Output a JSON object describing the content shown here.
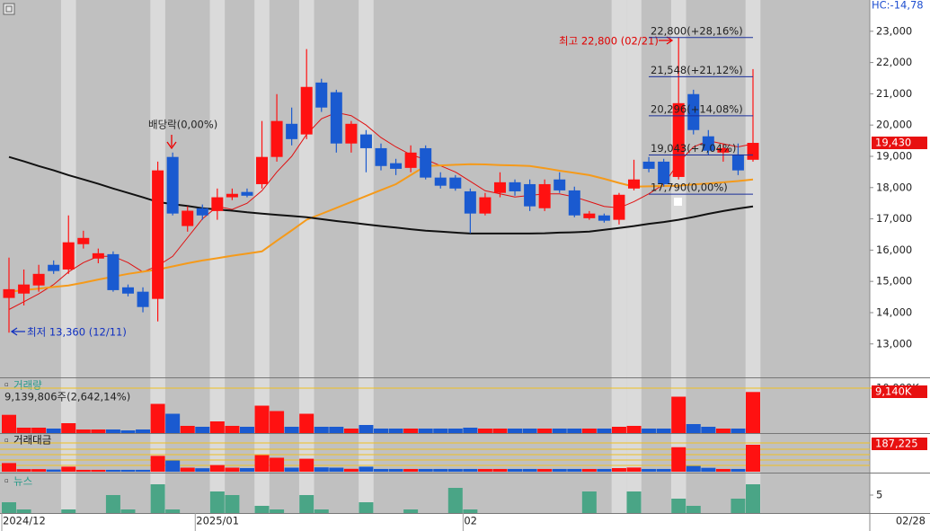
{
  "chart_data": [
    {
      "type": "candlestick",
      "indicator": "HC:-14,78",
      "categories": [
        "2024/12",
        null,
        null,
        null,
        null,
        null,
        null,
        null,
        null,
        null,
        null,
        null,
        null,
        "2025/01",
        null,
        null,
        null,
        null,
        null,
        null,
        null,
        null,
        null,
        null,
        null,
        null,
        null,
        null,
        null,
        null,
        null,
        "02",
        null,
        null,
        null,
        null,
        null,
        null,
        null,
        null,
        null,
        null,
        null,
        null,
        null,
        null,
        null,
        null,
        null,
        null,
        null
      ],
      "x_end_label": "02/28",
      "open": [
        14470,
        14610,
        14870,
        15530,
        15380,
        16190,
        15730,
        15870,
        14810,
        14670,
        14440,
        18980,
        16770,
        17340,
        17250,
        17690,
        17860,
        18110,
        18980,
        20040,
        19700,
        21360,
        21050,
        19410,
        19700,
        19260,
        18780,
        18630,
        19260,
        18320,
        18320,
        17880,
        17170,
        17830,
        18170,
        18110,
        17340,
        18260,
        17910,
        17020,
        17110,
        16970,
        17970,
        18830,
        18830,
        18340,
        20990,
        19640,
        19120,
        19060,
        18890
      ],
      "high": [
        15760,
        15380,
        15530,
        15670,
        17110,
        16620,
        16050,
        15960,
        14900,
        14810,
        18830,
        19120,
        17400,
        17460,
        17970,
        17970,
        17970,
        20130,
        20990,
        20560,
        22430,
        21480,
        21130,
        20130,
        19840,
        19410,
        18920,
        19350,
        19350,
        18490,
        18400,
        17970,
        17830,
        18490,
        18260,
        18260,
        18260,
        18490,
        18030,
        17250,
        17170,
        17830,
        18890,
        18980,
        18920,
        22800,
        21130,
        19840,
        19410,
        19410,
        21790
      ],
      "low": [
        13360,
        14230,
        14670,
        15240,
        15240,
        16050,
        15580,
        14670,
        14520,
        14010,
        13720,
        17110,
        16590,
        16970,
        16970,
        17600,
        17690,
        17970,
        18830,
        19350,
        19550,
        20420,
        19120,
        19120,
        18490,
        18550,
        18400,
        18490,
        18260,
        17970,
        17900,
        16540,
        17110,
        17690,
        17740,
        17250,
        17250,
        17830,
        17050,
        16970,
        16880,
        16820,
        17910,
        18490,
        18030,
        18260,
        19700,
        19030,
        18830,
        18400,
        18830
      ],
      "close": [
        14750,
        14900,
        15240,
        15330,
        16250,
        16390,
        15900,
        14720,
        14610,
        14180,
        18550,
        17170,
        17260,
        17110,
        17690,
        17800,
        17740,
        18980,
        20130,
        19550,
        21220,
        20560,
        19410,
        20040,
        19260,
        18690,
        18600,
        19120,
        18320,
        18060,
        17970,
        17170,
        17690,
        18170,
        17880,
        17400,
        18110,
        17910,
        17110,
        17170,
        16940,
        17770,
        18260,
        18600,
        18110,
        20700,
        19840,
        19180,
        19260,
        18550,
        19430
      ],
      "up_color": "#ff1111",
      "down_color": "#1a5ad0",
      "series": [
        {
          "color": "#e01010",
          "width": 1,
          "values": [
            14100,
            14350,
            14600,
            14900,
            15300,
            15600,
            15800,
            15800,
            15600,
            15300,
            15500,
            15800,
            16400,
            17000,
            17400,
            17300,
            17500,
            17900,
            18500,
            19000,
            19700,
            20200,
            20400,
            20300,
            20000,
            19600,
            19300,
            19050,
            18900,
            18700,
            18500,
            18200,
            17900,
            17800,
            17700,
            17750,
            17800,
            17800,
            17700,
            17550,
            17400,
            17350,
            17550,
            17800,
            18100,
            18800,
            19300,
            19500,
            19400,
            19300,
            19400
          ]
        },
        {
          "color": "#f59a1a",
          "width": 2,
          "values": [
            14670,
            14720,
            14770,
            14820,
            14870,
            14960,
            15060,
            15150,
            15240,
            15310,
            15380,
            15480,
            15580,
            15670,
            15740,
            15820,
            15890,
            15960,
            16300,
            16630,
            16970,
            17160,
            17350,
            17540,
            17730,
            17920,
            18110,
            18400,
            18690,
            18710,
            18730,
            18750,
            18740,
            18720,
            18710,
            18690,
            18620,
            18540,
            18470,
            18400,
            18280,
            18150,
            18030,
            18040,
            18050,
            18060,
            18100,
            18130,
            18170,
            18210,
            18260
          ]
        },
        {
          "color": "#111111",
          "width": 2,
          "values": [
            18980,
            18840,
            18690,
            18550,
            18400,
            18260,
            18120,
            17970,
            17830,
            17690,
            17540,
            17470,
            17410,
            17340,
            17300,
            17260,
            17210,
            17170,
            17130,
            17090,
            17050,
            16990,
            16930,
            16880,
            16820,
            16770,
            16720,
            16670,
            16620,
            16590,
            16560,
            16530,
            16530,
            16530,
            16530,
            16530,
            16540,
            16560,
            16570,
            16590,
            16650,
            16710,
            16770,
            16840,
            16900,
            16970,
            17060,
            17160,
            17250,
            17330,
            17400
          ]
        }
      ],
      "ylim": [
        11930,
        24000
      ],
      "yticks": [
        {
          "value": 13000,
          "label": "13,000"
        },
        {
          "value": 14000,
          "label": "14,000"
        },
        {
          "value": 15000,
          "label": "15,000"
        },
        {
          "value": 16000,
          "label": "16,000"
        },
        {
          "value": 17000,
          "label": "17,000"
        },
        {
          "value": 18000,
          "label": "18,000"
        },
        {
          "value": 19000,
          "label": "19,000"
        },
        {
          "value": 20000,
          "label": "20,000"
        },
        {
          "value": 21000,
          "label": "21,000"
        },
        {
          "value": 22000,
          "label": "22,000"
        },
        {
          "value": 23000,
          "label": "23,000"
        }
      ],
      "levels": [
        {
          "value": 22800,
          "label": "22,800(+28,16%)"
        },
        {
          "value": 21548,
          "label": "21,548(+21,12%)"
        },
        {
          "value": 20296,
          "label": "20,296(+14,08%)"
        },
        {
          "value": 19043,
          "label": "19,043(+7,04%)"
        },
        {
          "value": 17790,
          "label": "17,790(0,00%)"
        }
      ],
      "high_label": "최고 22,800 (02/21)",
      "low_label": "최저 13,360 (12/11)",
      "dividend_label": "배당락(0,00%)",
      "current": {
        "value": 19430,
        "label": "19,430"
      }
    },
    {
      "type": "bar",
      "title": "거래량",
      "subtitle": "9,139,806주(2,642,14%)",
      "values": [
        4060,
        1200,
        1200,
        1000,
        2200,
        800,
        800,
        800,
        600,
        800,
        6500,
        4300,
        1600,
        1400,
        2600,
        1600,
        1400,
        6100,
        4900,
        1400,
        4300,
        1400,
        1400,
        1000,
        1800,
        1000,
        1000,
        1000,
        1000,
        1000,
        1000,
        1200,
        1000,
        1000,
        1000,
        1000,
        1000,
        1000,
        1000,
        1000,
        1000,
        1400,
        1600,
        1000,
        1000,
        8100,
        2000,
        1400,
        1000,
        1000,
        9140
      ],
      "ylim": [
        0,
        12400
      ],
      "yticks": [
        {
          "value": 10000,
          "label": "10,000K"
        }
      ],
      "current": {
        "value": 9140,
        "label": "9,140K"
      }
    },
    {
      "type": "bar",
      "title": "거래대금",
      "values": [
        60000,
        18000,
        18000,
        15000,
        35000,
        13000,
        13000,
        13000,
        13000,
        13000,
        110000,
        78000,
        28000,
        24000,
        46000,
        28000,
        25000,
        115000,
        97000,
        28000,
        90000,
        30000,
        28000,
        20000,
        35000,
        19000,
        19000,
        19000,
        19000,
        19000,
        19000,
        19000,
        19000,
        19000,
        19000,
        19000,
        19000,
        19000,
        19000,
        19000,
        19000,
        25000,
        29000,
        19000,
        19000,
        170000,
        40000,
        27000,
        19000,
        19000,
        187225
      ],
      "ylim": [
        0,
        262000
      ],
      "current": {
        "value": 187225,
        "label": "187,225"
      }
    },
    {
      "type": "bar",
      "title": "뉴스",
      "color": "#4aa586",
      "values": [
        3,
        1,
        0,
        0,
        1,
        0,
        0,
        5,
        1,
        0,
        8,
        1,
        0,
        0,
        6,
        5,
        0,
        2,
        1,
        0,
        5,
        1,
        0,
        0,
        3,
        0,
        0,
        1,
        0,
        0,
        7,
        1,
        0,
        0,
        0,
        0,
        0,
        0,
        0,
        6,
        0,
        0,
        6,
        0,
        0,
        4,
        2,
        0,
        0,
        4,
        8
      ],
      "ylim": [
        0,
        11
      ],
      "yticks": [
        5
      ]
    }
  ]
}
